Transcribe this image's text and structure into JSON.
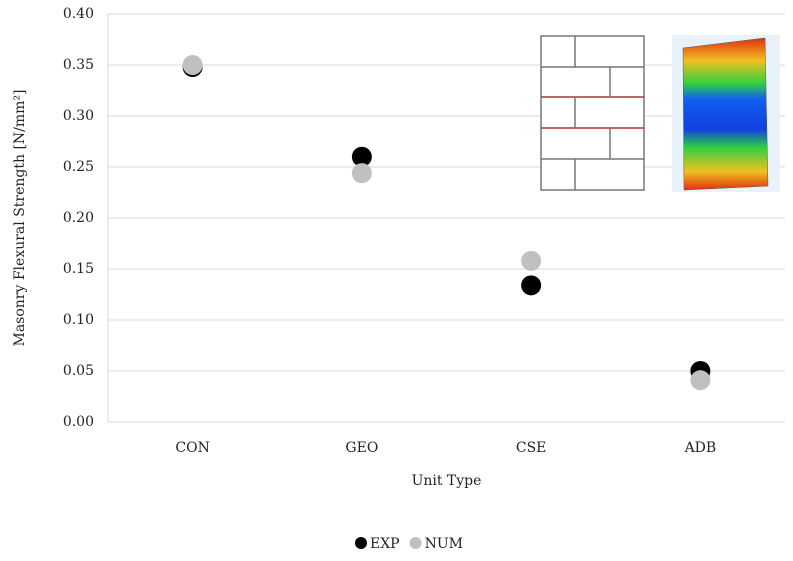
{
  "chart_data": {
    "type": "dot",
    "x_label": "Unit Type",
    "y_label": "Masonry Flexural Strength [N/mm²]",
    "categories": [
      "CON",
      "GEO",
      "CSE",
      "ADB"
    ],
    "series": [
      {
        "name": "EXP",
        "color": "#000000",
        "values": [
          0.348,
          0.26,
          0.134,
          0.05
        ]
      },
      {
        "name": "NUM",
        "color": "#c0c0c0",
        "values": [
          0.35,
          0.244,
          0.158,
          0.041
        ]
      }
    ],
    "ylim": [
      0,
      0.4
    ],
    "yticks": [
      {
        "value": 0,
        "label": "0.00"
      },
      {
        "value": 0.05,
        "label": "0.05"
      },
      {
        "value": 0.1,
        "label": "0.10"
      },
      {
        "value": 0.15,
        "label": "0.15"
      },
      {
        "value": 0.2,
        "label": "0.20"
      },
      {
        "value": 0.25,
        "label": "0.25"
      },
      {
        "value": 0.3,
        "label": "0.30"
      },
      {
        "value": 0.35,
        "label": "0.35"
      },
      {
        "value": 0.4,
        "label": "0.40"
      }
    ],
    "grid": true,
    "legend": "bottom"
  }
}
